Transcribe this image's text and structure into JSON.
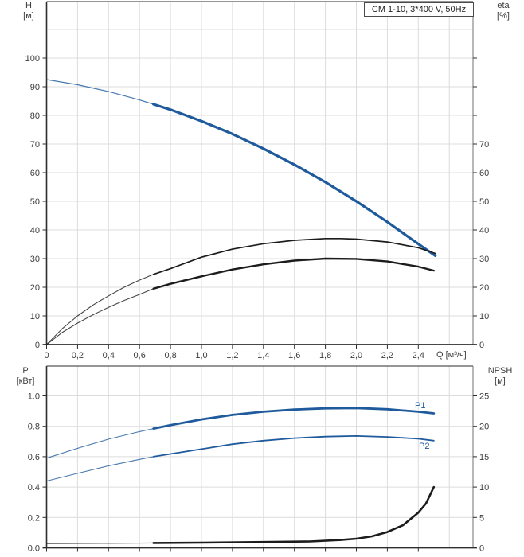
{
  "colors": {
    "blue": "#1e5a9c",
    "black": "#1c1c1c",
    "grid": "#dcdcdc",
    "axis": "#2e2e2e",
    "border_light": "#707070",
    "text": "#3d3d3d"
  },
  "header": {
    "title_box": "CM 1-10, 3*400 V, 50Hz"
  },
  "chart_data": [
    {
      "type": "line",
      "title": "CM 1-10, 3*400 V, 50Hz",
      "grid": true,
      "x_axis": {
        "label": "Q [м³/ч]",
        "tick_labels": [
          "0",
          "0,2",
          "0,4",
          "0,6",
          "0,8",
          "1,0",
          "1,2",
          "1,4",
          "1,6",
          "1,8",
          "2,0",
          "2,2",
          "2,4"
        ],
        "tick_values": [
          0,
          0.2,
          0.4,
          0.6,
          0.8,
          1.0,
          1.2,
          1.4,
          1.6,
          1.8,
          2.0,
          2.2,
          2.4
        ],
        "range": [
          0,
          2.76
        ]
      },
      "y_left": {
        "name": "H",
        "unit": "[м]",
        "tick_labels": [
          "0",
          "10",
          "20",
          "30",
          "40",
          "50",
          "60",
          "70",
          "80",
          "90",
          "100"
        ],
        "tick_values": [
          0,
          10,
          20,
          30,
          40,
          50,
          60,
          70,
          80,
          90,
          100
        ],
        "range": [
          0,
          120
        ]
      },
      "y_right": {
        "name": "eta",
        "unit": "[%]",
        "tick_labels": [
          "0",
          "10",
          "20",
          "30",
          "40",
          "50",
          "60",
          "70"
        ],
        "tick_values": [
          0,
          10,
          20,
          30,
          40,
          50,
          60,
          70
        ],
        "extra_tick_values": [
          80,
          90,
          100
        ],
        "range": [
          0,
          120
        ]
      },
      "series": [
        {
          "name": "head",
          "label": "",
          "axis": "left",
          "color_key": "blue",
          "thin_until": 0.69,
          "points": [
            [
              0,
              92.5
            ],
            [
              0.2,
              90.7
            ],
            [
              0.4,
              88.3
            ],
            [
              0.6,
              85.4
            ],
            [
              0.69,
              83.9
            ],
            [
              0.8,
              82.0
            ],
            [
              1.0,
              78.0
            ],
            [
              1.2,
              73.5
            ],
            [
              1.4,
              68.4
            ],
            [
              1.6,
              62.8
            ],
            [
              1.8,
              56.7
            ],
            [
              2.0,
              50.0
            ],
            [
              2.2,
              42.8
            ],
            [
              2.4,
              35.1
            ],
            [
              2.51,
              31.0
            ]
          ]
        },
        {
          "name": "eta-pump",
          "label": "",
          "axis": "right",
          "color_key": "black",
          "thin_until": 0.69,
          "points": [
            [
              0,
              0
            ],
            [
              0.1,
              5.5
            ],
            [
              0.2,
              10.0
            ],
            [
              0.3,
              13.8
            ],
            [
              0.4,
              17.0
            ],
            [
              0.5,
              20.0
            ],
            [
              0.6,
              22.5
            ],
            [
              0.69,
              24.5
            ],
            [
              0.8,
              26.5
            ],
            [
              1.0,
              30.5
            ],
            [
              1.2,
              33.3
            ],
            [
              1.4,
              35.2
            ],
            [
              1.6,
              36.4
            ],
            [
              1.8,
              37.0
            ],
            [
              1.9,
              37.0
            ],
            [
              2.0,
              36.8
            ],
            [
              2.2,
              35.8
            ],
            [
              2.4,
              33.8
            ],
            [
              2.51,
              31.8
            ]
          ]
        },
        {
          "name": "eta-motor",
          "label": "",
          "axis": "right",
          "color_key": "black",
          "thin_until": 0.69,
          "points": [
            [
              0,
              0
            ],
            [
              0.1,
              4.2
            ],
            [
              0.2,
              7.5
            ],
            [
              0.3,
              10.4
            ],
            [
              0.4,
              13.0
            ],
            [
              0.5,
              15.4
            ],
            [
              0.6,
              17.5
            ],
            [
              0.69,
              19.5
            ],
            [
              0.8,
              21.2
            ],
            [
              1.0,
              23.8
            ],
            [
              1.2,
              26.2
            ],
            [
              1.4,
              28.0
            ],
            [
              1.6,
              29.3
            ],
            [
              1.8,
              30.0
            ],
            [
              2.0,
              29.9
            ],
            [
              2.2,
              29.0
            ],
            [
              2.4,
              27.2
            ],
            [
              2.5,
              25.8
            ]
          ]
        }
      ]
    },
    {
      "type": "line",
      "title": "",
      "grid": true,
      "x_axis": {
        "label": "",
        "tick_labels": [],
        "tick_values": [
          0,
          0.2,
          0.4,
          0.6,
          0.8,
          1.0,
          1.2,
          1.4,
          1.6,
          1.8,
          2.0,
          2.2,
          2.4
        ],
        "range": [
          0,
          2.76
        ]
      },
      "y_left": {
        "name": "P",
        "unit": "[кВт]",
        "tick_labels": [
          "0.0",
          "0.2",
          "0.4",
          "0.6",
          "0.8",
          "1.0"
        ],
        "tick_values": [
          0,
          0.2,
          0.4,
          0.6,
          0.8,
          1.0
        ],
        "range": [
          0,
          1.2
        ]
      },
      "y_right": {
        "name": "NPSH",
        "unit": "[м]",
        "tick_labels": [
          "0",
          "5",
          "10",
          "15",
          "20",
          "25"
        ],
        "tick_values": [
          0,
          5,
          10,
          15,
          20,
          25
        ],
        "range": [
          0,
          30
        ]
      },
      "series": [
        {
          "name": "P1",
          "label": "P1",
          "axis": "left",
          "color_key": "blue",
          "thin_until": 0.69,
          "points": [
            [
              0,
              0.59
            ],
            [
              0.2,
              0.655
            ],
            [
              0.4,
              0.715
            ],
            [
              0.6,
              0.765
            ],
            [
              0.69,
              0.785
            ],
            [
              0.8,
              0.808
            ],
            [
              1.0,
              0.845
            ],
            [
              1.2,
              0.875
            ],
            [
              1.4,
              0.896
            ],
            [
              1.6,
              0.91
            ],
            [
              1.8,
              0.918
            ],
            [
              2.0,
              0.92
            ],
            [
              2.2,
              0.912
            ],
            [
              2.4,
              0.896
            ],
            [
              2.5,
              0.885
            ]
          ]
        },
        {
          "name": "P2",
          "label": "P2",
          "axis": "left",
          "color_key": "blue",
          "thin_until": 0.69,
          "points": [
            [
              0,
              0.44
            ],
            [
              0.2,
              0.49
            ],
            [
              0.4,
              0.54
            ],
            [
              0.6,
              0.582
            ],
            [
              0.69,
              0.6
            ],
            [
              0.8,
              0.618
            ],
            [
              1.0,
              0.65
            ],
            [
              1.2,
              0.682
            ],
            [
              1.4,
              0.705
            ],
            [
              1.6,
              0.722
            ],
            [
              1.8,
              0.732
            ],
            [
              2.0,
              0.736
            ],
            [
              2.2,
              0.73
            ],
            [
              2.4,
              0.718
            ],
            [
              2.5,
              0.705
            ]
          ]
        },
        {
          "name": "NPSH",
          "label": "",
          "axis": "right",
          "color_key": "black",
          "thin_until": 0.69,
          "points": [
            [
              0,
              0.7
            ],
            [
              0.4,
              0.75
            ],
            [
              0.69,
              0.8
            ],
            [
              1.0,
              0.85
            ],
            [
              1.4,
              0.95
            ],
            [
              1.7,
              1.05
            ],
            [
              1.9,
              1.3
            ],
            [
              2.0,
              1.5
            ],
            [
              2.1,
              1.9
            ],
            [
              2.2,
              2.6
            ],
            [
              2.3,
              3.7
            ],
            [
              2.4,
              5.8
            ],
            [
              2.45,
              7.3
            ],
            [
              2.5,
              10.0
            ]
          ]
        }
      ]
    }
  ]
}
